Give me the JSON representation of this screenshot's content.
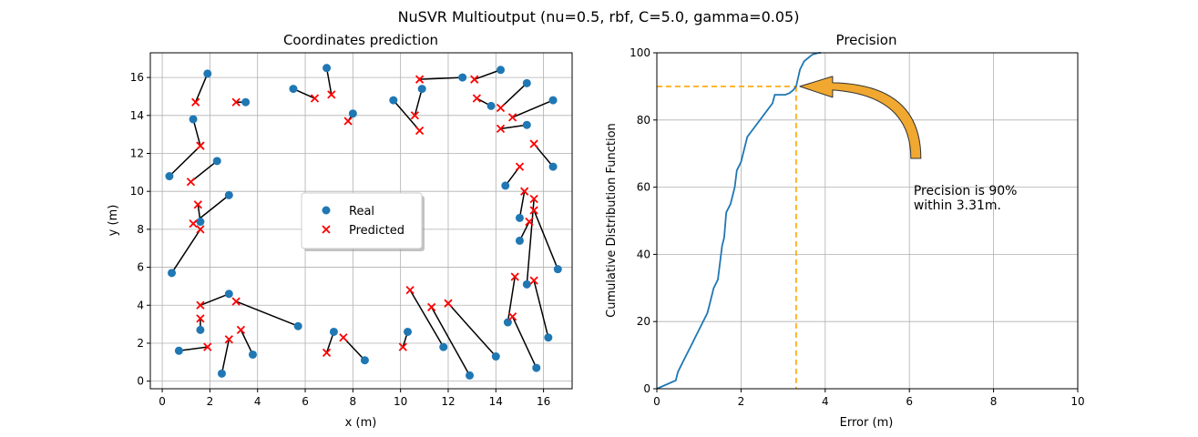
{
  "figure": {
    "suptitle": "NuSVR Multioutput (nu=0.5, rbf, C=5.0, gamma=0.05)"
  },
  "chart_data": [
    {
      "type": "scatter",
      "title": "Coordinates prediction",
      "xlabel": "x (m)",
      "ylabel": "y (m)",
      "xlim": [
        -0.5,
        17.2
      ],
      "ylim": [
        -0.4,
        17.3
      ],
      "xticks": [
        0,
        2,
        4,
        6,
        8,
        10,
        12,
        14,
        16
      ],
      "yticks": [
        0,
        2,
        4,
        6,
        8,
        10,
        12,
        14,
        16
      ],
      "grid": true,
      "legend": {
        "position": "center",
        "entries": [
          "Real",
          "Predicted"
        ]
      },
      "colors": {
        "real": "#1f77b4",
        "predicted": "#ff0000",
        "link": "#000000"
      },
      "pairs": [
        {
          "real": [
            1.9,
            16.2
          ],
          "pred": [
            1.4,
            14.7
          ]
        },
        {
          "real": [
            3.5,
            14.7
          ],
          "pred": [
            3.1,
            14.7
          ]
        },
        {
          "real": [
            1.3,
            13.8
          ],
          "pred": [
            1.6,
            12.4
          ]
        },
        {
          "real": [
            0.3,
            10.8
          ],
          "pred": [
            1.6,
            12.4
          ]
        },
        {
          "real": [
            2.3,
            11.6
          ],
          "pred": [
            1.2,
            10.5
          ]
        },
        {
          "real": [
            1.6,
            8.4
          ],
          "pred": [
            1.5,
            9.3
          ]
        },
        {
          "real": [
            2.8,
            9.8
          ],
          "pred": [
            1.3,
            8.3
          ]
        },
        {
          "real": [
            0.4,
            5.7
          ],
          "pred": [
            1.6,
            8.0
          ]
        },
        {
          "real": [
            2.8,
            4.6
          ],
          "pred": [
            1.6,
            4.0
          ]
        },
        {
          "real": [
            5.7,
            2.9
          ],
          "pred": [
            3.1,
            4.2
          ]
        },
        {
          "real": [
            1.6,
            2.7
          ],
          "pred": [
            1.6,
            3.3
          ]
        },
        {
          "real": [
            0.7,
            1.6
          ],
          "pred": [
            1.9,
            1.8
          ]
        },
        {
          "real": [
            3.8,
            1.4
          ],
          "pred": [
            3.3,
            2.7
          ]
        },
        {
          "real": [
            2.5,
            0.4
          ],
          "pred": [
            2.8,
            2.2
          ]
        },
        {
          "real": [
            5.5,
            15.4
          ],
          "pred": [
            6.4,
            14.9
          ]
        },
        {
          "real": [
            6.9,
            16.5
          ],
          "pred": [
            7.1,
            15.1
          ]
        },
        {
          "real": [
            8.0,
            14.1
          ],
          "pred": [
            7.8,
            13.7
          ]
        },
        {
          "real": [
            9.7,
            14.8
          ],
          "pred": [
            10.8,
            13.2
          ]
        },
        {
          "real": [
            10.9,
            15.4
          ],
          "pred": [
            10.6,
            14.0
          ]
        },
        {
          "real": [
            12.6,
            16.0
          ],
          "pred": [
            10.8,
            15.9
          ]
        },
        {
          "real": [
            14.2,
            16.4
          ],
          "pred": [
            13.1,
            15.9
          ]
        },
        {
          "real": [
            13.8,
            14.5
          ],
          "pred": [
            13.2,
            14.9
          ]
        },
        {
          "real": [
            15.3,
            15.7
          ],
          "pred": [
            14.2,
            14.4
          ]
        },
        {
          "real": [
            16.4,
            14.8
          ],
          "pred": [
            14.7,
            13.9
          ]
        },
        {
          "real": [
            15.3,
            13.5
          ],
          "pred": [
            14.2,
            13.3
          ]
        },
        {
          "real": [
            16.4,
            11.3
          ],
          "pred": [
            15.6,
            12.5
          ]
        },
        {
          "real": [
            14.4,
            10.3
          ],
          "pred": [
            15.0,
            11.3
          ]
        },
        {
          "real": [
            15.0,
            8.6
          ],
          "pred": [
            15.2,
            10.0
          ]
        },
        {
          "real": [
            15.0,
            7.4
          ],
          "pred": [
            15.4,
            8.4
          ]
        },
        {
          "real": [
            15.3,
            5.1
          ],
          "pred": [
            15.6,
            9.6
          ]
        },
        {
          "real": [
            16.6,
            5.9
          ],
          "pred": [
            15.6,
            9.0
          ]
        },
        {
          "real": [
            14.5,
            3.1
          ],
          "pred": [
            14.8,
            5.5
          ]
        },
        {
          "real": [
            16.2,
            2.3
          ],
          "pred": [
            15.6,
            5.3
          ]
        },
        {
          "real": [
            15.7,
            0.7
          ],
          "pred": [
            14.7,
            3.4
          ]
        },
        {
          "real": [
            7.2,
            2.6
          ],
          "pred": [
            6.9,
            1.5
          ]
        },
        {
          "real": [
            8.5,
            1.1
          ],
          "pred": [
            7.6,
            2.3
          ]
        },
        {
          "real": [
            10.3,
            2.6
          ],
          "pred": [
            10.1,
            1.8
          ]
        },
        {
          "real": [
            11.8,
            1.8
          ],
          "pred": [
            10.4,
            4.8
          ]
        },
        {
          "real": [
            12.9,
            0.3
          ],
          "pred": [
            11.3,
            3.9
          ]
        },
        {
          "real": [
            14.0,
            1.3
          ],
          "pred": [
            12.0,
            4.1
          ]
        }
      ]
    },
    {
      "type": "line",
      "title": "Precision",
      "xlabel": "Error (m)",
      "ylabel": "Cumulative Distribution Function",
      "xlim": [
        0,
        10
      ],
      "ylim": [
        0,
        100
      ],
      "xticks": [
        0,
        2,
        4,
        6,
        8,
        10
      ],
      "yticks": [
        0,
        20,
        40,
        60,
        80,
        100
      ],
      "grid": true,
      "colors": {
        "line": "#1f77b4",
        "guide": "#ffa500",
        "arrow_fill": "#f0a830",
        "arrow_edge": "#333333"
      },
      "x": [
        0,
        0.45,
        0.5,
        0.6,
        0.7,
        0.8,
        0.9,
        1.0,
        1.1,
        1.2,
        1.25,
        1.3,
        1.35,
        1.45,
        1.5,
        1.55,
        1.6,
        1.65,
        1.75,
        1.85,
        1.9,
        2.0,
        2.05,
        2.1,
        2.15,
        2.3,
        2.45,
        2.6,
        2.75,
        2.8,
        2.9,
        3.05,
        3.15,
        3.25,
        3.31,
        3.4,
        3.5,
        3.6,
        3.7,
        3.85,
        3.9
      ],
      "y": [
        0,
        2.5,
        5,
        7.5,
        10,
        12.5,
        15,
        17.5,
        20,
        22.5,
        25,
        27.5,
        30,
        32.5,
        37.5,
        42.5,
        45,
        52.5,
        55,
        60,
        65,
        67.5,
        70,
        72.5,
        75,
        77.5,
        80,
        82.5,
        85,
        87.5,
        87.5,
        87.5,
        88,
        89,
        90,
        95,
        97.5,
        98.5,
        99.5,
        100,
        100
      ],
      "guide": {
        "x": 3.31,
        "y": 90
      },
      "annotation": {
        "text_lines": [
          "Precision is 90%",
          "within 3.31m."
        ],
        "anchor": [
          3.31,
          90
        ],
        "text_at": [
          6.1,
          55
        ]
      }
    }
  ]
}
